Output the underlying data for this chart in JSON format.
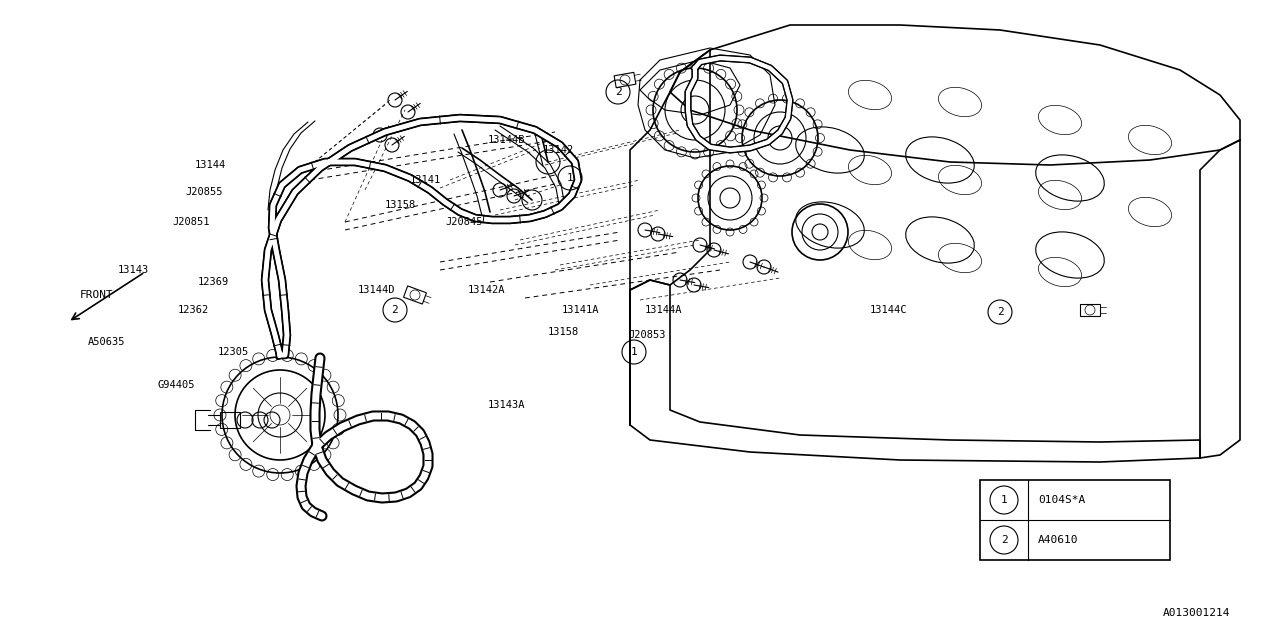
{
  "bg_color": "#ffffff",
  "line_color": "#000000",
  "diagram_id": "A013001214",
  "legend": [
    {
      "symbol": "1",
      "code": "0104S*A"
    },
    {
      "symbol": "2",
      "code": "A40610"
    }
  ],
  "figsize": [
    12.8,
    6.4
  ],
  "dpi": 100,
  "xlim": [
    0,
    1280
  ],
  "ylim": [
    0,
    640
  ]
}
